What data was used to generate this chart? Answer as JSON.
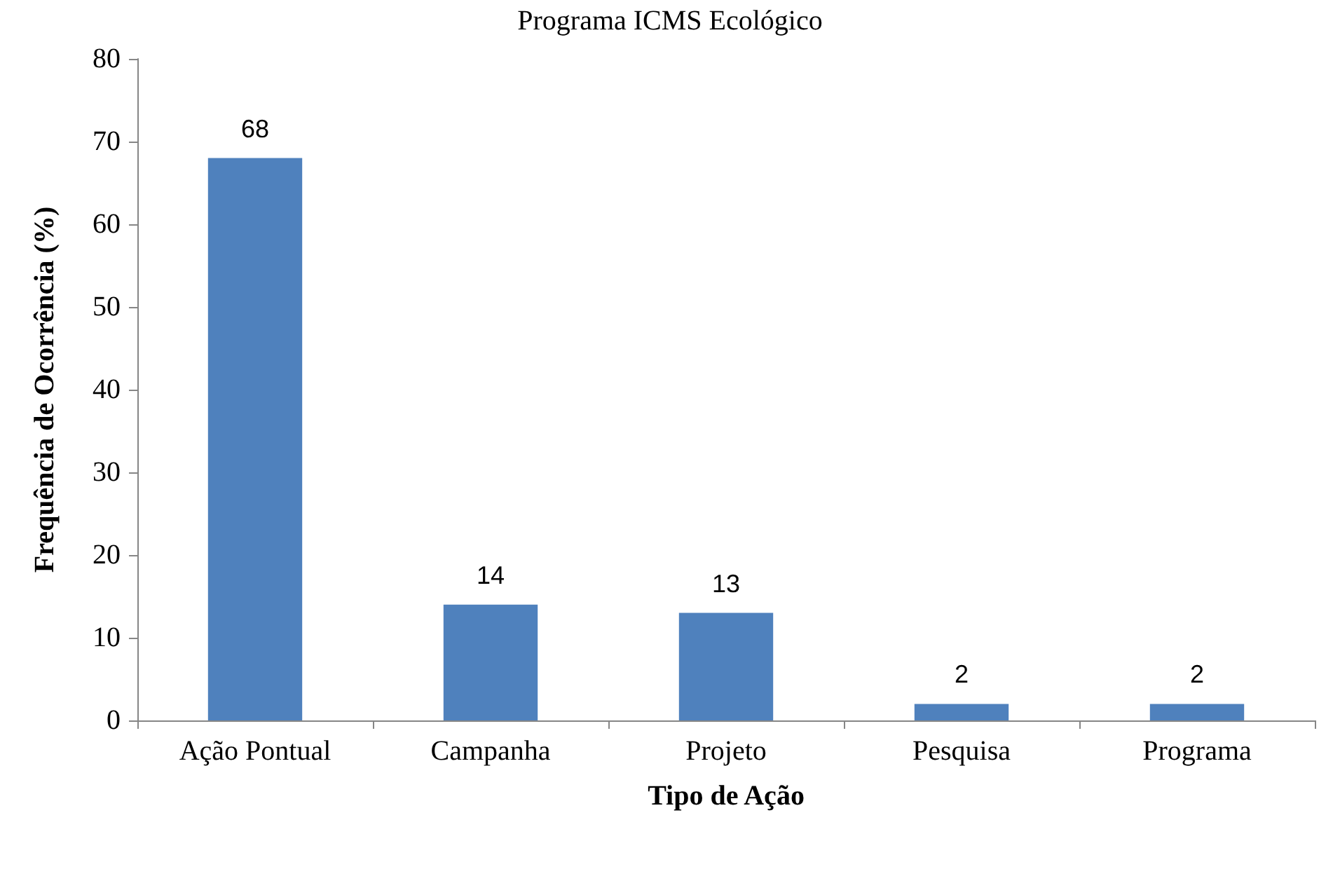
{
  "chart_data": {
    "type": "bar",
    "title": "Programa ICMS Ecológico",
    "xlabel": "Tipo de Ação",
    "ylabel": "Frequência de Ocorrência (%)",
    "categories": [
      "Ação Pontual",
      "Campanha",
      "Projeto",
      "Pesquisa",
      "Programa"
    ],
    "values": [
      68,
      14,
      13,
      2,
      2
    ],
    "color": "#4f81bd",
    "ylim": [
      0,
      80
    ],
    "yticks": [
      0,
      10,
      20,
      30,
      40,
      50,
      60,
      70,
      80
    ],
    "grid": false,
    "data_labels": true
  }
}
